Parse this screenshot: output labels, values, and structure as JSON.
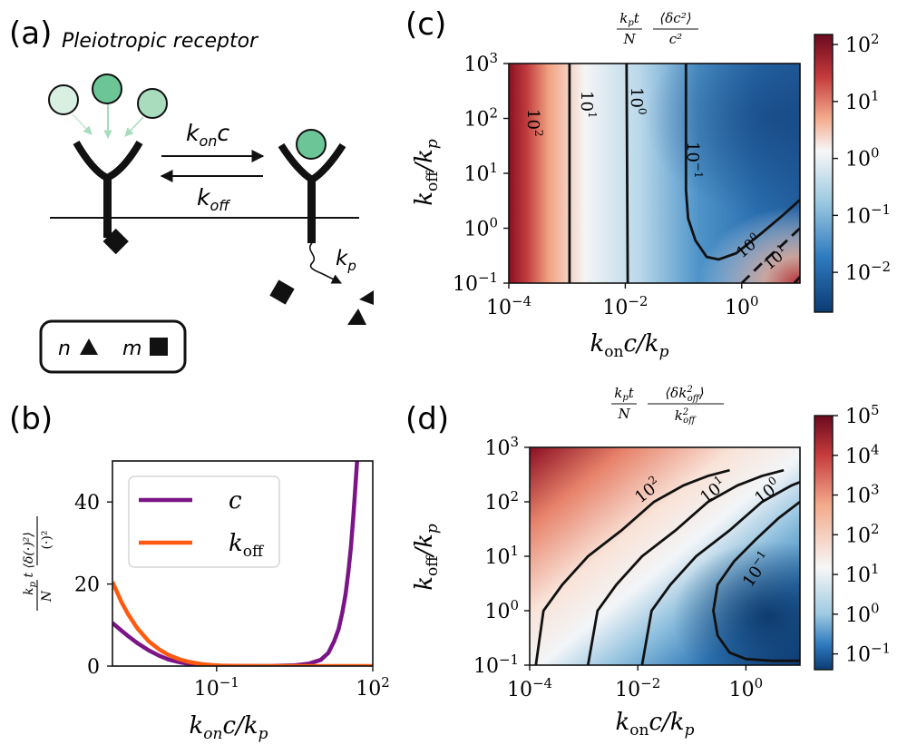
{
  "panels": {
    "a": {
      "label": "(a)",
      "title": "Pleiotropic receptor",
      "rates": {
        "kon": "k",
        "kon_sub": "on",
        "kon_c": "c",
        "koff": "k",
        "koff_sub": "off",
        "kp": "k",
        "kp_sub": "p"
      },
      "legend": {
        "n": "n",
        "m": "m"
      }
    },
    "b": {
      "label": "(b)"
    },
    "c": {
      "label": "(c)"
    },
    "d": {
      "label": "(d)"
    }
  },
  "colors": {
    "ligand_dark": "#6cc597",
    "ligand_mid": "#a8dcbd",
    "ligand_light": "#d8f0e1",
    "series_c": "#7b1486",
    "series_koff": "#ff5a10",
    "cmap_high": "#6a0a1e",
    "cmap_mid": "#f6f6f6",
    "cmap_low": "#0b3b73"
  },
  "chart_data": [
    {
      "panel": "b",
      "type": "line",
      "title": "",
      "xlabel": "k_on c / k_p",
      "ylabel": "(k_p t / N) ⟨δ(·)²⟩ / (·)²",
      "xscale": "log",
      "xlim": [
        0.001,
        100
      ],
      "ylim": [
        0,
        50
      ],
      "xticks": [
        {
          "v": 0.1,
          "base": "10",
          "exp": "−1"
        },
        {
          "v": 100,
          "base": "10",
          "exp": "2"
        }
      ],
      "yticks": [
        {
          "v": 0,
          "label": "0"
        },
        {
          "v": 20,
          "label": "20"
        },
        {
          "v": 40,
          "label": "40"
        }
      ],
      "legend_position": "top-center",
      "series": [
        {
          "name": "c",
          "x": [
            0.001,
            0.0015,
            0.002,
            0.003,
            0.005,
            0.008,
            0.012,
            0.02,
            0.03,
            0.05,
            0.08,
            0.12,
            0.2,
            0.4,
            1,
            3,
            6,
            10,
            14,
            18,
            22,
            26,
            30,
            34,
            38,
            42,
            46,
            50
          ],
          "y": [
            10.5,
            8.6,
            7.3,
            5.6,
            3.8,
            2.5,
            1.6,
            0.9,
            0.5,
            0.25,
            0.12,
            0.06,
            0.03,
            0.01,
            0.01,
            0.15,
            0.6,
            1.5,
            3.2,
            6.0,
            9.0,
            13.0,
            17.5,
            23.0,
            29.0,
            36.0,
            43.0,
            50.0
          ]
        },
        {
          "name": "k_off",
          "x": [
            0.001,
            0.0015,
            0.002,
            0.003,
            0.005,
            0.008,
            0.012,
            0.02,
            0.03,
            0.05,
            0.08,
            0.12,
            0.2,
            0.4,
            1,
            10,
            100
          ],
          "y": [
            20.5,
            15.5,
            12.6,
            9.2,
            6.0,
            4.0,
            2.7,
            1.6,
            1.0,
            0.5,
            0.25,
            0.12,
            0.05,
            0.02,
            0.01,
            0.01,
            0.01
          ]
        }
      ]
    },
    {
      "panel": "c",
      "type": "heatmap",
      "title": "(k_p t / N) ⟨δc²⟩ / c²",
      "xlabel": "k_on c / k_p",
      "ylabel": "k_off / k_p",
      "xscale": "log",
      "yscale": "log",
      "xlim": [
        0.0001,
        10
      ],
      "ylim": [
        0.1,
        1000
      ],
      "xticks": [
        {
          "v": 0.0001,
          "exp": "−4"
        },
        {
          "v": 0.01,
          "exp": "−2"
        },
        {
          "v": 1,
          "exp": "0"
        }
      ],
      "yticks": [
        {
          "v": 0.1,
          "exp": "−1"
        },
        {
          "v": 1,
          "exp": "0"
        },
        {
          "v": 10,
          "exp": "1"
        },
        {
          "v": 100,
          "exp": "2"
        },
        {
          "v": 1000,
          "exp": "3"
        }
      ],
      "colorbar": {
        "scale": "log",
        "range": [
          0.002,
          150
        ],
        "ticks": [
          {
            "v": 100,
            "exp": "2"
          },
          {
            "v": 10,
            "exp": "1"
          },
          {
            "v": 1,
            "exp": "0"
          },
          {
            "v": 0.1,
            "exp": "−1"
          },
          {
            "v": 0.01,
            "exp": "−2"
          }
        ]
      },
      "contours": [
        {
          "level": "10^2",
          "label": "10²",
          "line": "none",
          "x": [
            0.00013,
            0.00013
          ],
          "y": [
            0.1,
            1000
          ]
        },
        {
          "level": "10^1",
          "label": "10¹",
          "line": "solid",
          "x": [
            0.0011,
            0.0011
          ],
          "y": [
            0.1,
            1000
          ]
        },
        {
          "level": "10^0",
          "label": "10⁰",
          "line": "solid",
          "x": [
            0.011,
            0.0105
          ],
          "y": [
            0.1,
            1000
          ]
        },
        {
          "level": "10^-1",
          "label": "10⁻¹",
          "line": "solid",
          "x": [
            0.11,
            0.11,
            0.12,
            0.16,
            0.25,
            0.4,
            0.8,
            2,
            5,
            10
          ],
          "y": [
            1000,
            5,
            1.5,
            0.6,
            0.3,
            0.27,
            0.35,
            0.75,
            1.7,
            3.3
          ]
        },
        {
          "level": "10^0 (lower)",
          "label": "10⁰",
          "line": "dashed",
          "x": [
            1,
            2.5,
            5,
            10
          ],
          "y": [
            0.1,
            0.26,
            0.5,
            1.0
          ]
        },
        {
          "level": "10^1 (lower)",
          "label": "10¹",
          "line": "dashed",
          "x": [
            8,
            10
          ],
          "y": [
            0.1,
            0.13
          ]
        }
      ]
    },
    {
      "panel": "d",
      "type": "heatmap",
      "title": "(k_p t / N) ⟨δk_off²⟩ / k_off²",
      "xlabel": "k_on c / k_p",
      "ylabel": "k_off / k_p",
      "xscale": "log",
      "yscale": "log",
      "xlim": [
        0.0001,
        10
      ],
      "ylim": [
        0.1,
        1000
      ],
      "xticks": [
        {
          "v": 0.0001,
          "exp": "−4"
        },
        {
          "v": 0.01,
          "exp": "−2"
        },
        {
          "v": 1,
          "exp": "0"
        }
      ],
      "yticks": [
        {
          "v": 0.1,
          "exp": "−1"
        },
        {
          "v": 1,
          "exp": "0"
        },
        {
          "v": 10,
          "exp": "1"
        },
        {
          "v": 100,
          "exp": "2"
        },
        {
          "v": 1000,
          "exp": "3"
        }
      ],
      "colorbar": {
        "scale": "log",
        "range": [
          0.04,
          100000
        ],
        "ticks": [
          {
            "v": 100000,
            "exp": "5"
          },
          {
            "v": 10000,
            "exp": "4"
          },
          {
            "v": 1000,
            "exp": "3"
          },
          {
            "v": 100,
            "exp": "2"
          },
          {
            "v": 10,
            "exp": "1"
          },
          {
            "v": 1,
            "exp": "0"
          },
          {
            "v": 0.1,
            "exp": "−1"
          }
        ]
      },
      "contours": [
        {
          "level": "10^2",
          "label": "10²",
          "line": "solid",
          "x": [
            0.00013,
            0.00018,
            0.0004,
            0.0012,
            0.005,
            0.02,
            0.07,
            0.2,
            0.5
          ],
          "y": [
            0.1,
            1,
            3,
            10,
            30,
            100,
            200,
            300,
            380
          ]
        },
        {
          "level": "10^1",
          "label": "10¹",
          "line": "solid",
          "x": [
            0.0012,
            0.0018,
            0.004,
            0.012,
            0.05,
            0.2,
            0.7,
            2,
            5
          ],
          "y": [
            0.1,
            1,
            3,
            10,
            30,
            100,
            200,
            300,
            380
          ]
        },
        {
          "level": "10^0",
          "label": "10⁰",
          "line": "solid",
          "x": [
            0.012,
            0.018,
            0.04,
            0.12,
            0.5,
            2,
            7,
            10
          ],
          "y": [
            0.1,
            1,
            3,
            10,
            30,
            100,
            200,
            230
          ]
        },
        {
          "level": "10^-1",
          "label": "10⁻¹",
          "line": "solid",
          "x": [
            10,
            3,
            1,
            0.5,
            0.3,
            0.25,
            0.3,
            0.6,
            1.5,
            4,
            10
          ],
          "y": [
            0.12,
            0.12,
            0.13,
            0.17,
            0.35,
            1,
            3,
            8,
            20,
            50,
            100
          ]
        }
      ]
    }
  ]
}
